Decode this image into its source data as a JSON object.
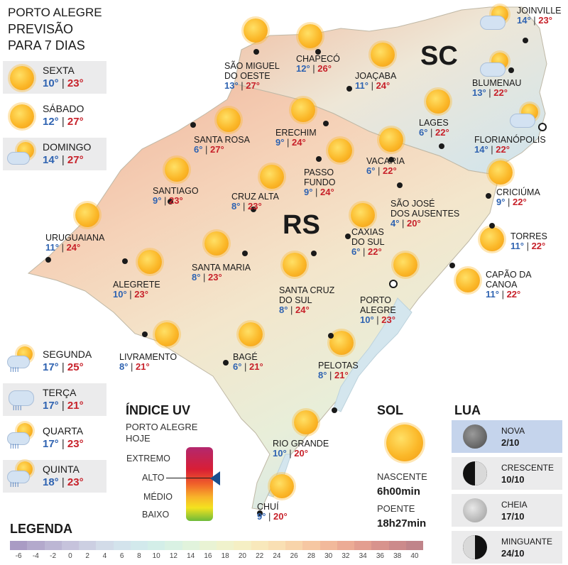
{
  "title": {
    "line1": "PORTO ALEGRE",
    "line2": "PREVISÃO",
    "line3": "PARA 7 DIAS"
  },
  "days_top": [
    {
      "name": "SEXTA",
      "min": "10°",
      "max": "23°",
      "icon": "sun-icon"
    },
    {
      "name": "SÁBADO",
      "min": "12°",
      "max": "27°",
      "icon": "sun-icon"
    },
    {
      "name": "DOMINGO",
      "min": "14°",
      "max": "27°",
      "icon": "partly-cloudy-icon"
    }
  ],
  "days_bottom": [
    {
      "name": "SEGUNDA",
      "min": "17°",
      "max": "25°",
      "icon": "sun-cloud-rain-icon"
    },
    {
      "name": "TERÇA",
      "min": "17°",
      "max": "21°",
      "icon": "cloud-rain-icon"
    },
    {
      "name": "QUARTA",
      "min": "17°",
      "max": "23°",
      "icon": "sun-cloud-rain-icon"
    },
    {
      "name": "QUINTA",
      "min": "18°",
      "max": "23°",
      "icon": "sun-cloud-rain-icon"
    }
  ],
  "states": {
    "sc": "SC",
    "rs": "RS"
  },
  "cities": [
    {
      "l1": "JOINVILLE",
      "l2": "",
      "min": "14°",
      "max": "23°"
    },
    {
      "l1": "BLUMENAU",
      "l2": "",
      "min": "13°",
      "max": "22°"
    },
    {
      "l1": "FLORIANÓPOLIS",
      "l2": "",
      "min": "14°",
      "max": "22°"
    },
    {
      "l1": "CHAPECÓ",
      "l2": "",
      "min": "12°",
      "max": "26°"
    },
    {
      "l1": "SÃO MIGUEL",
      "l2": "DO OESTE",
      "min": "13°",
      "max": "27°"
    },
    {
      "l1": "JOAÇABA",
      "l2": "",
      "min": "11°",
      "max": "24°"
    },
    {
      "l1": "LAGES",
      "l2": "",
      "min": "6°",
      "max": "22°"
    },
    {
      "l1": "SANTA ROSA",
      "l2": "",
      "min": "6°",
      "max": "27°"
    },
    {
      "l1": "ERECHIM",
      "l2": "",
      "min": "9°",
      "max": "24°"
    },
    {
      "l1": "VACARIA",
      "l2": "",
      "min": "6°",
      "max": "22°"
    },
    {
      "l1": "PASSO",
      "l2": "FUNDO",
      "min": "9°",
      "max": "24°"
    },
    {
      "l1": "CRICIÚMA",
      "l2": "",
      "min": "9°",
      "max": "22°"
    },
    {
      "l1": "SANTIAGO",
      "l2": "",
      "min": "9°",
      "max": "23°"
    },
    {
      "l1": "CRUZ ALTA",
      "l2": "",
      "min": "8°",
      "max": "23°"
    },
    {
      "l1": "SÃO JOSÉ",
      "l2": "DOS AUSENTES",
      "min": "4°",
      "max": "20°"
    },
    {
      "l1": "URUGUAIANA",
      "l2": "",
      "min": "11°",
      "max": "24°"
    },
    {
      "l1": "TORRES",
      "l2": "",
      "min": "11°",
      "max": "22°"
    },
    {
      "l1": "CAXIAS",
      "l2": "DO SUL",
      "min": "6°",
      "max": "22°"
    },
    {
      "l1": "SANTA MARIA",
      "l2": "",
      "min": "8°",
      "max": "23°"
    },
    {
      "l1": "ALEGRETE",
      "l2": "",
      "min": "10°",
      "max": "23°"
    },
    {
      "l1": "CAPÃO DA",
      "l2": "CANOA",
      "min": "11°",
      "max": "22°"
    },
    {
      "l1": "SANTA CRUZ",
      "l2": "DO SUL",
      "min": "8°",
      "max": "24°"
    },
    {
      "l1": "PORTO",
      "l2": "ALEGRE",
      "min": "10°",
      "max": "23°"
    },
    {
      "l1": "LIVRAMENTO",
      "l2": "",
      "min": "8°",
      "max": "21°"
    },
    {
      "l1": "BAGÉ",
      "l2": "",
      "min": "6°",
      "max": "21°"
    },
    {
      "l1": "PELOTAS",
      "l2": "",
      "min": "8°",
      "max": "21°"
    },
    {
      "l1": "RIO GRANDE",
      "l2": "",
      "min": "10°",
      "max": "20°"
    },
    {
      "l1": "CHUÍ",
      "l2": "",
      "min": "9°",
      "max": "20°"
    }
  ],
  "uv": {
    "title": "ÍNDICE UV",
    "sub1": "PORTO ALEGRE",
    "sub2": "HOJE",
    "levels": [
      "EXTREMO",
      "ALTO",
      "MÉDIO",
      "BAIXO"
    ],
    "current": "ALTO"
  },
  "sun": {
    "title": "SOL",
    "rise_label": "NASCENTE",
    "rise_time": "6h00min",
    "set_label": "POENTE",
    "set_time": "18h27min"
  },
  "moon": {
    "title": "LUA",
    "phases": [
      {
        "name": "NOVA",
        "date": "2/10",
        "active": true
      },
      {
        "name": "CRESCENTE",
        "date": "10/10",
        "active": false
      },
      {
        "name": "CHEIA",
        "date": "17/10",
        "active": false
      },
      {
        "name": "MINGUANTE",
        "date": "24/10",
        "active": false
      }
    ]
  },
  "legend": {
    "title": "LEGENDA",
    "ticks": [
      "-6",
      "-4",
      "-2",
      "0",
      "2",
      "4",
      "6",
      "8",
      "10",
      "12",
      "14",
      "16",
      "18",
      "20",
      "22",
      "24",
      "26",
      "28",
      "30",
      "32",
      "34",
      "36",
      "38",
      "40"
    ],
    "colors": [
      "#a99bc4",
      "#b3a9cc",
      "#bcb6d4",
      "#c6c3dc",
      "#cccfe2",
      "#d2dbe8",
      "#d3e3ec",
      "#d2e9ec",
      "#d3eee8",
      "#d9f1e3",
      "#e1f3dc",
      "#e9f3d4",
      "#f0f2cc",
      "#f5efc4",
      "#f8e8bb",
      "#f9dfb3",
      "#f8d4aa",
      "#f6c7a2",
      "#f2b99b",
      "#ecab95",
      "#e39e90",
      "#d8938d",
      "#cc8a8b",
      "#c0848a"
    ]
  }
}
